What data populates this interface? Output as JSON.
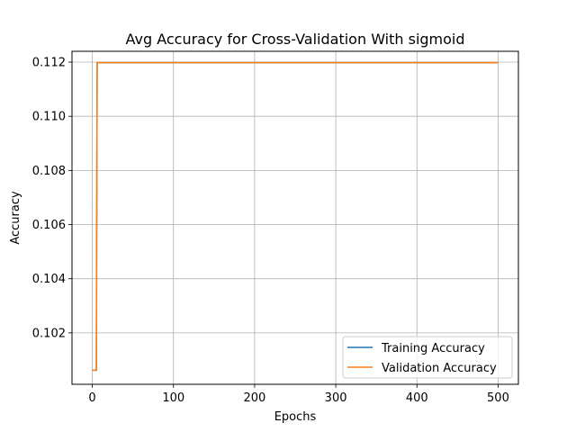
{
  "chart_data": {
    "type": "line",
    "title": "Avg Accuracy for Cross-Validation With sigmoid",
    "xlabel": "Epochs",
    "ylabel": "Accuracy",
    "xlim": [
      -25,
      525
    ],
    "ylim": [
      0.1001,
      0.1124
    ],
    "xticks": [
      0,
      100,
      200,
      300,
      400,
      500
    ],
    "xtick_labels": [
      "0",
      "100",
      "200",
      "300",
      "400",
      "500"
    ],
    "yticks": [
      0.102,
      0.104,
      0.106,
      0.108,
      0.11,
      0.112
    ],
    "ytick_labels": [
      "0.102",
      "0.104",
      "0.106",
      "0.108",
      "0.110",
      "0.112"
    ],
    "grid": true,
    "legend_position": "bottom-right",
    "series": [
      {
        "name": "Training Accuracy",
        "color": "#1f77b4",
        "x": [
          0,
          4,
          5,
          6,
          500
        ],
        "y": [
          0.10062,
          0.10062,
          0.10062,
          0.11198,
          0.11198
        ]
      },
      {
        "name": "Validation Accuracy",
        "color": "#ff7f0e",
        "x": [
          0,
          4,
          5,
          6,
          500
        ],
        "y": [
          0.10062,
          0.10062,
          0.10062,
          0.11198,
          0.11198
        ]
      }
    ]
  }
}
